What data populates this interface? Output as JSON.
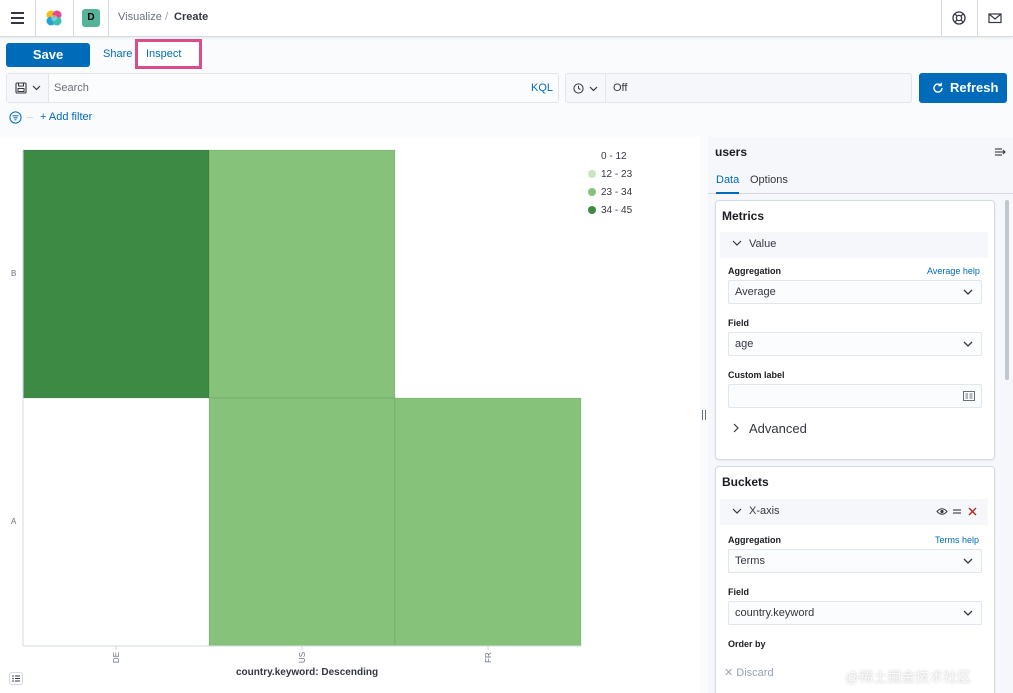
{
  "header": {
    "space_initial": "D",
    "breadcrumbs": [
      "Visualize",
      "Create"
    ],
    "breadcrumb_separator": "/",
    "icons": [
      "menu-icon",
      "elastic-logo-icon",
      "help-icon",
      "mail-icon"
    ]
  },
  "toolbar": {
    "save_label": "Save",
    "share_label": "Share",
    "inspect_label": "Inspect",
    "highlight_color": "#d84e8a"
  },
  "query": {
    "placeholder": "Search",
    "language_label": "KQL",
    "refresh_interval": "Off",
    "refresh_label": "Refresh"
  },
  "filters": {
    "add_filter_label": "+ Add filter"
  },
  "chart_data": {
    "type": "heatmap",
    "x_categories": [
      "DE",
      "US",
      "FR"
    ],
    "y_categories": [
      "B",
      "A"
    ],
    "xlabel": "country.keyword: Descending",
    "cells": [
      {
        "x": "DE",
        "y": "B",
        "bucket": "34 - 45"
      },
      {
        "x": "US",
        "y": "B",
        "bucket": "23 - 34"
      },
      {
        "x": "US",
        "y": "A",
        "bucket": "23 - 34"
      },
      {
        "x": "FR",
        "y": "A",
        "bucket": "23 - 34"
      }
    ],
    "legend": [
      {
        "label": "0 - 12",
        "color": ""
      },
      {
        "label": "12 - 23",
        "color": "#c7e6bc"
      },
      {
        "label": "23 - 34",
        "color": "#86c27a"
      },
      {
        "label": "34 - 45",
        "color": "#3d8a45"
      }
    ],
    "legend_position": "top-right"
  },
  "sidebar": {
    "index_pattern": "users",
    "tabs": [
      "Data",
      "Options"
    ],
    "metrics": {
      "title": "Metrics",
      "item_label": "Value",
      "aggregation_label": "Aggregation",
      "aggregation_help": "Average help",
      "aggregation_value": "Average",
      "field_label": "Field",
      "field_value": "age",
      "custom_label_label": "Custom label",
      "advanced_label": "Advanced"
    },
    "buckets": {
      "title": "Buckets",
      "item_label": "X-axis",
      "aggregation_label": "Aggregation",
      "aggregation_help": "Terms help",
      "aggregation_value": "Terms",
      "field_label": "Field",
      "field_value": "country.keyword",
      "order_by_label": "Order by",
      "discard_label": "Discard"
    }
  },
  "watermark": "@稀土掘金技术社区"
}
